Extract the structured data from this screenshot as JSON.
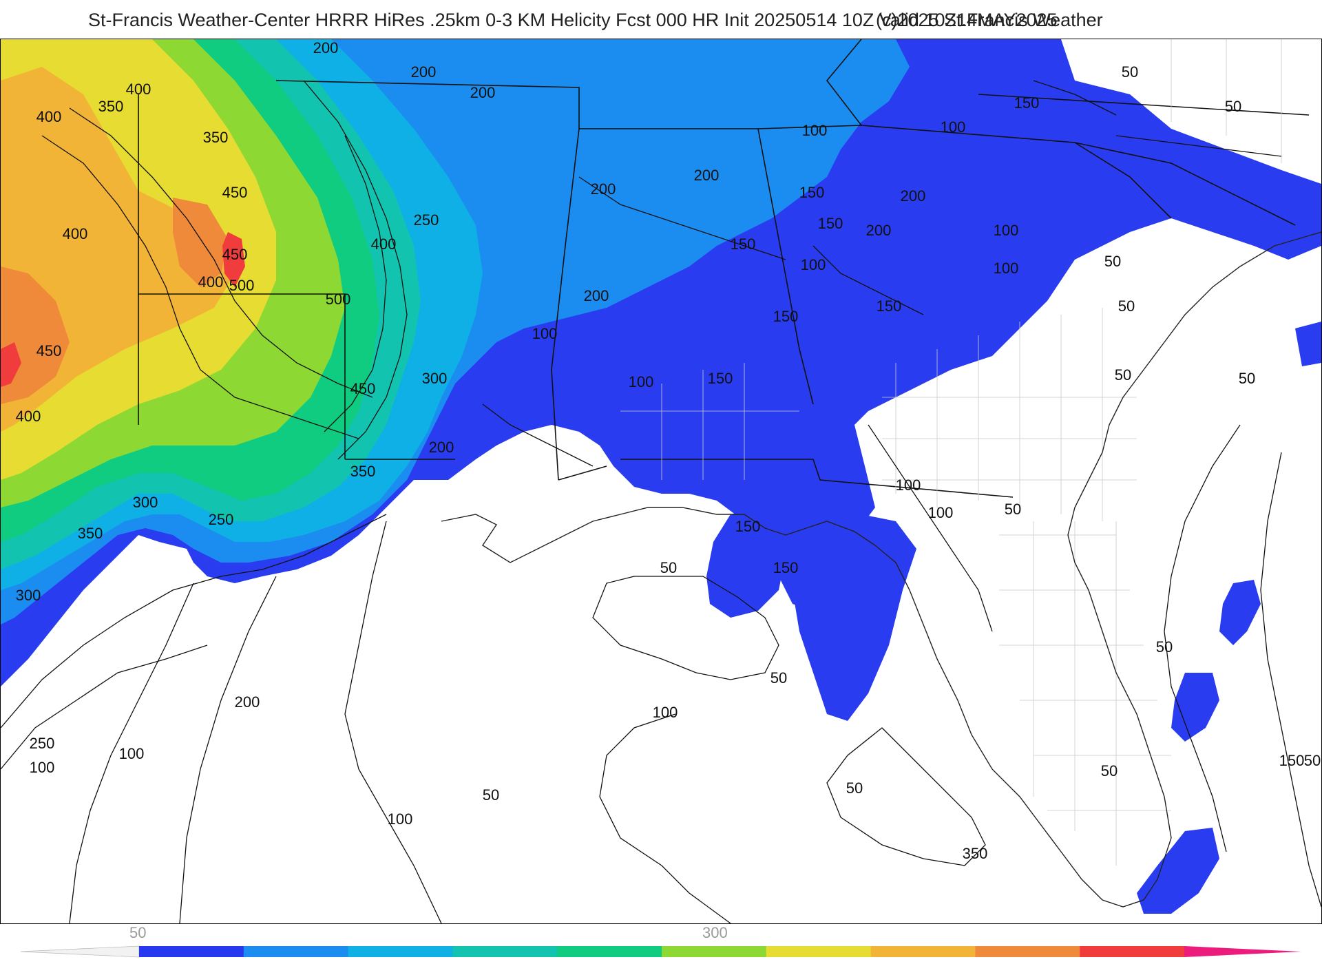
{
  "header": {
    "title_left": "St-Francis Weather-Center HRRR HiRes .25km 0-3 KM Helicity Fcst 000 HR Init 20250514 10Z  Valid 10Z14MAY2025",
    "title_right": "(c)2025 St.Francis Weather"
  },
  "legend": {
    "tick_labels": [
      "50",
      "300"
    ],
    "colors": [
      "#2638f0",
      "#1c8df0",
      "#0fb0e6",
      "#12c4b0",
      "#10cc80",
      "#8ed834",
      "#e6dc32",
      "#f2b436",
      "#ee8a3a",
      "#f03c3c",
      "#ec1c7c"
    ]
  },
  "map": {
    "variable": "0-3 km storm relative helicity",
    "contour_labels": [
      "200",
      "200",
      "200",
      "400",
      "350",
      "400",
      "350",
      "450",
      "400",
      "400",
      "500",
      "450",
      "450",
      "400",
      "250",
      "400",
      "500",
      "450",
      "300",
      "200",
      "350",
      "300",
      "350",
      "250",
      "300",
      "200",
      "150",
      "100",
      "150",
      "200",
      "150",
      "100",
      "100",
      "200",
      "100",
      "150",
      "200",
      "150",
      "200",
      "100",
      "150",
      "100",
      "150",
      "50",
      "50",
      "100",
      "50",
      "50",
      "150",
      "100",
      "50",
      "150",
      "100",
      "50",
      "50",
      "50",
      "50",
      "150",
      "350",
      "200",
      "250",
      "100",
      "100",
      "100",
      "100",
      "50",
      "50",
      "50",
      "50",
      "50"
    ]
  }
}
